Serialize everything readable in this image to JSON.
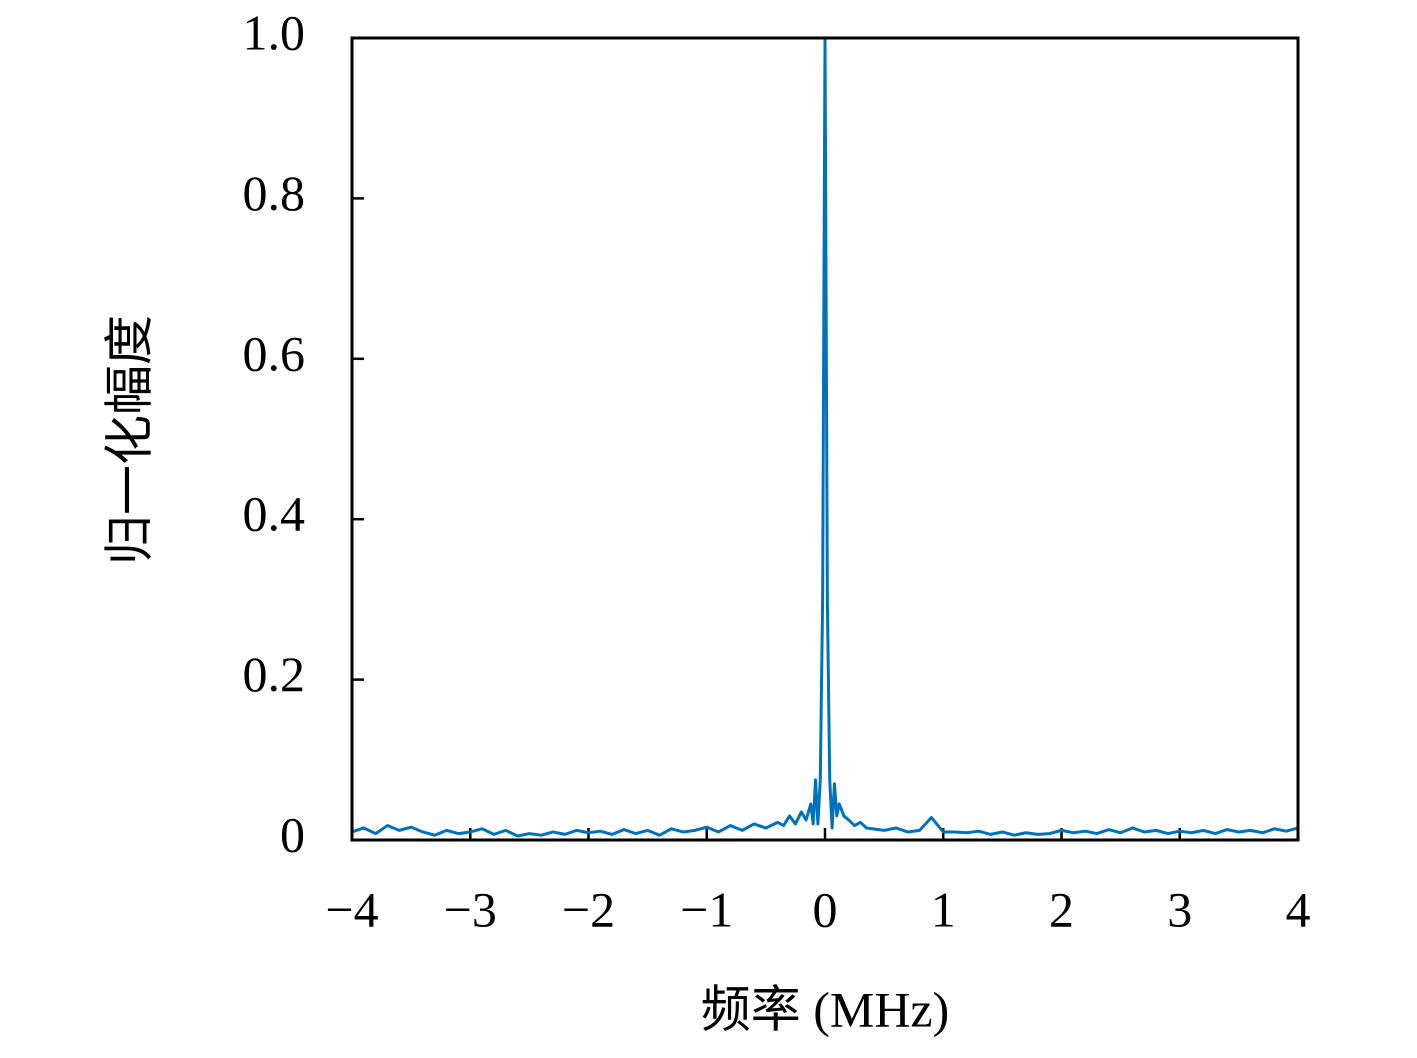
{
  "chart_data": {
    "type": "line",
    "xlabel": "频率 (MHz)",
    "ylabel": "归一化幅度",
    "x": [
      -4.0,
      -3.9,
      -3.8,
      -3.7,
      -3.6,
      -3.5,
      -3.4,
      -3.3,
      -3.2,
      -3.1,
      -3.0,
      -2.9,
      -2.8,
      -2.7,
      -2.6,
      -2.5,
      -2.4,
      -2.3,
      -2.2,
      -2.1,
      -2.0,
      -1.9,
      -1.8,
      -1.7,
      -1.6,
      -1.5,
      -1.4,
      -1.3,
      -1.2,
      -1.1,
      -1.0,
      -0.9,
      -0.8,
      -0.7,
      -0.6,
      -0.5,
      -0.4,
      -0.35,
      -0.3,
      -0.25,
      -0.2,
      -0.16,
      -0.12,
      -0.1,
      -0.08,
      -0.06,
      -0.04,
      -0.02,
      0,
      0.02,
      0.04,
      0.06,
      0.08,
      0.1,
      0.12,
      0.16,
      0.2,
      0.25,
      0.3,
      0.35,
      0.4,
      0.5,
      0.6,
      0.7,
      0.8,
      0.9,
      1.0,
      1.1,
      1.2,
      1.3,
      1.4,
      1.5,
      1.6,
      1.7,
      1.8,
      1.9,
      2.0,
      2.1,
      2.2,
      2.3,
      2.4,
      2.5,
      2.6,
      2.7,
      2.8,
      2.9,
      3.0,
      3.1,
      3.2,
      3.3,
      3.4,
      3.5,
      3.6,
      3.7,
      3.8,
      3.9,
      4.0
    ],
    "series": [
      {
        "color": "#0072bd",
        "values": [
          0.01,
          0.015,
          0.008,
          0.018,
          0.012,
          0.016,
          0.01,
          0.006,
          0.012,
          0.008,
          0.01,
          0.014,
          0.007,
          0.012,
          0.005,
          0.008,
          0.006,
          0.01,
          0.007,
          0.012,
          0.009,
          0.011,
          0.007,
          0.013,
          0.008,
          0.012,
          0.006,
          0.014,
          0.01,
          0.012,
          0.016,
          0.01,
          0.018,
          0.012,
          0.02,
          0.015,
          0.022,
          0.018,
          0.03,
          0.02,
          0.035,
          0.025,
          0.045,
          0.02,
          0.075,
          0.02,
          0.075,
          0.3,
          1.0,
          0.3,
          0.075,
          0.015,
          0.07,
          0.03,
          0.045,
          0.03,
          0.025,
          0.018,
          0.022,
          0.015,
          0.014,
          0.012,
          0.015,
          0.01,
          0.012,
          0.028,
          0.01,
          0.01,
          0.009,
          0.011,
          0.007,
          0.01,
          0.006,
          0.009,
          0.007,
          0.008,
          0.012,
          0.009,
          0.011,
          0.008,
          0.013,
          0.009,
          0.015,
          0.01,
          0.012,
          0.008,
          0.011,
          0.009,
          0.012,
          0.008,
          0.013,
          0.01,
          0.012,
          0.009,
          0.014,
          0.011,
          0.015
        ]
      }
    ],
    "xlim": [
      -4,
      4
    ],
    "xticks": [
      {
        "value": -4,
        "label": "−4"
      },
      {
        "value": -3,
        "label": "−3"
      },
      {
        "value": -2,
        "label": "−2"
      },
      {
        "value": -1,
        "label": "−1"
      },
      0,
      1,
      2,
      3,
      4
    ],
    "ylim": [
      0,
      1
    ],
    "yticks": [
      0,
      0.2,
      0.4,
      0.6,
      0.8,
      {
        "value": 1,
        "label": "1.0"
      }
    ]
  }
}
